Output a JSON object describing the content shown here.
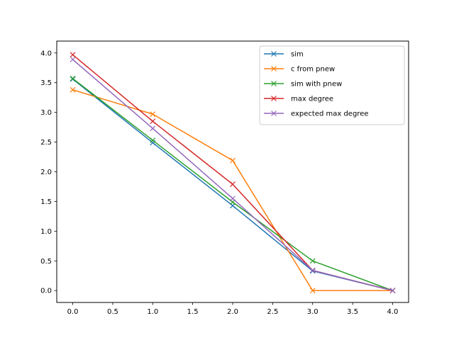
{
  "chart_data": {
    "type": "line",
    "title": "",
    "xlabel": "",
    "ylabel": "",
    "xlim": [
      -0.2,
      4.2
    ],
    "ylim": [
      -0.2,
      4.2
    ],
    "x_ticks": [
      "0.0",
      "0.5",
      "1.0",
      "1.5",
      "2.0",
      "2.5",
      "3.0",
      "3.5",
      "4.0"
    ],
    "y_ticks": [
      "0.0",
      "0.5",
      "1.0",
      "1.5",
      "2.0",
      "2.5",
      "3.0",
      "3.5",
      "4.0"
    ],
    "grid": false,
    "legend_position": "top-right",
    "marker": "x",
    "x": [
      0,
      1,
      2,
      3,
      4
    ],
    "series": [
      {
        "name": "sim",
        "color": "#1f77b4",
        "values": [
          3.56,
          2.49,
          1.43,
          0.33,
          0.0
        ]
      },
      {
        "name": "c from pnew",
        "color": "#ff7f0e",
        "values": [
          3.38,
          2.97,
          2.19,
          0.0,
          0.0
        ]
      },
      {
        "name": "sim with pnew",
        "color": "#2ca02c",
        "values": [
          3.57,
          2.53,
          1.49,
          0.5,
          0.0
        ]
      },
      {
        "name": "max degree",
        "color": "#d62728",
        "values": [
          3.97,
          2.85,
          1.79,
          0.34,
          0.0
        ]
      },
      {
        "name": "expected max degree",
        "color": "#9467bd",
        "values": [
          3.89,
          2.73,
          1.55,
          0.34,
          0.0
        ]
      }
    ]
  }
}
